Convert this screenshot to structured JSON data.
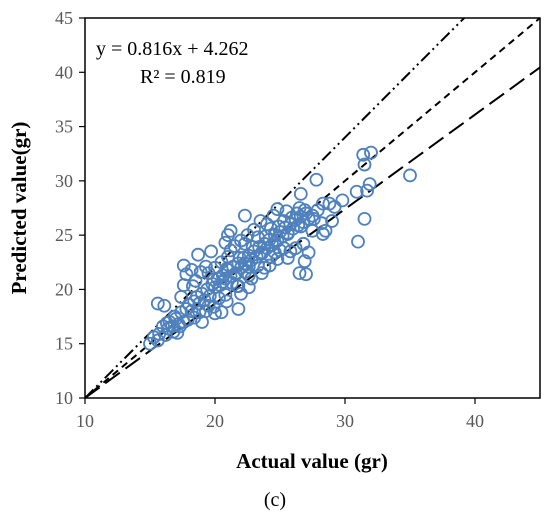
{
  "chart_data": {
    "type": "scatter",
    "title": "",
    "xlabel": "Actual value (gr)",
    "ylabel": "Predicted value(gr)",
    "xlim": [
      10,
      45
    ],
    "ylim": [
      10,
      45
    ],
    "xticks": [
      10,
      20,
      30,
      40
    ],
    "yticks": [
      10,
      15,
      20,
      25,
      30,
      35,
      40,
      45
    ],
    "grid": false,
    "marker": "open-circle",
    "marker_color": "#4F81BD",
    "annotations": {
      "equation": "y = 0.816x + 4.262",
      "r2": "R² = 0.819"
    },
    "caption": "(c)",
    "lines": [
      {
        "style": "dash-dot",
        "slope": 1.2,
        "intercept": -2.0
      },
      {
        "style": "short-dash",
        "slope": 1.0,
        "intercept": 0.0
      },
      {
        "style": "long-dash",
        "slope": 0.87,
        "intercept": 1.3
      }
    ],
    "points": [
      [
        15.0,
        15.0
      ],
      [
        15.3,
        15.6
      ],
      [
        15.7,
        15.9
      ],
      [
        16.0,
        16.6
      ],
      [
        16.3,
        16.9
      ],
      [
        16.5,
        17.0
      ],
      [
        16.7,
        16.6
      ],
      [
        16.9,
        17.5
      ],
      [
        17.0,
        17.3
      ],
      [
        17.2,
        16.8
      ],
      [
        17.4,
        17.9
      ],
      [
        17.6,
        17.0
      ],
      [
        17.8,
        18.2
      ],
      [
        18.0,
        18.6
      ],
      [
        18.2,
        18.0
      ],
      [
        18.4,
        18.9
      ],
      [
        18.6,
        19.3
      ],
      [
        18.8,
        18.7
      ],
      [
        19.0,
        19.6
      ],
      [
        19.2,
        19.0
      ],
      [
        19.4,
        20.0
      ],
      [
        19.6,
        19.4
      ],
      [
        19.8,
        20.5
      ],
      [
        20.0,
        20.2
      ],
      [
        20.2,
        21.0
      ],
      [
        20.4,
        20.4
      ],
      [
        20.6,
        21.3
      ],
      [
        20.8,
        21.0
      ],
      [
        21.0,
        21.8
      ],
      [
        21.2,
        21.2
      ],
      [
        21.4,
        22.1
      ],
      [
        21.6,
        21.5
      ],
      [
        21.8,
        22.4
      ],
      [
        22.0,
        22.0
      ],
      [
        22.2,
        22.9
      ],
      [
        22.4,
        22.3
      ],
      [
        22.6,
        23.1
      ],
      [
        22.8,
        22.7
      ],
      [
        23.0,
        23.5
      ],
      [
        23.2,
        23.0
      ],
      [
        23.4,
        23.9
      ],
      [
        23.6,
        23.3
      ],
      [
        23.8,
        24.2
      ],
      [
        24.0,
        23.8
      ],
      [
        24.2,
        24.6
      ],
      [
        24.4,
        24.1
      ],
      [
        24.6,
        25.0
      ],
      [
        24.8,
        24.5
      ],
      [
        25.0,
        25.3
      ],
      [
        25.2,
        24.9
      ],
      [
        25.4,
        25.7
      ],
      [
        25.6,
        25.2
      ],
      [
        25.8,
        26.0
      ],
      [
        26.0,
        25.6
      ],
      [
        26.2,
        26.4
      ],
      [
        26.4,
        25.9
      ],
      [
        26.6,
        26.7
      ],
      [
        26.8,
        26.2
      ],
      [
        27.0,
        27.0
      ],
      [
        27.2,
        26.5
      ],
      [
        21.0,
        23.0
      ],
      [
        22.0,
        24.5
      ],
      [
        23.0,
        25.5
      ],
      [
        24.0,
        26.0
      ],
      [
        20.5,
        22.5
      ],
      [
        21.5,
        24.0
      ],
      [
        22.5,
        25.0
      ],
      [
        23.5,
        26.3
      ],
      [
        24.5,
        26.8
      ],
      [
        25.5,
        27.2
      ],
      [
        26.5,
        27.5
      ],
      [
        19.5,
        21.5
      ],
      [
        18.5,
        20.8
      ],
      [
        20.0,
        22.0
      ],
      [
        21.2,
        23.6
      ],
      [
        22.3,
        24.2
      ],
      [
        23.3,
        24.8
      ],
      [
        24.3,
        25.6
      ],
      [
        25.3,
        26.3
      ],
      [
        26.3,
        27.0
      ],
      [
        20.8,
        19.5
      ],
      [
        21.8,
        20.3
      ],
      [
        22.8,
        21.0
      ],
      [
        23.8,
        22.0
      ],
      [
        24.8,
        22.8
      ],
      [
        25.8,
        23.5
      ],
      [
        26.8,
        24.2
      ],
      [
        21.3,
        20.6
      ],
      [
        22.3,
        21.6
      ],
      [
        23.3,
        22.2
      ],
      [
        24.3,
        23.0
      ],
      [
        25.3,
        23.8
      ],
      [
        19.5,
        18.5
      ],
      [
        20.3,
        19.2
      ],
      [
        18.8,
        17.9
      ],
      [
        17.9,
        17.2
      ],
      [
        16.8,
        16.1
      ],
      [
        20.6,
        20.7
      ],
      [
        21.6,
        21.4
      ],
      [
        22.6,
        22.1
      ],
      [
        23.6,
        23.4
      ],
      [
        24.6,
        24.3
      ],
      [
        25.6,
        25.1
      ],
      [
        26.6,
        25.8
      ],
      [
        27.6,
        26.5
      ],
      [
        19.9,
        20.9
      ],
      [
        20.9,
        21.9
      ],
      [
        21.9,
        22.9
      ],
      [
        22.9,
        23.9
      ],
      [
        23.9,
        24.9
      ],
      [
        24.9,
        25.8
      ],
      [
        25.9,
        26.6
      ],
      [
        26.9,
        27.3
      ],
      [
        27.5,
        26.8
      ],
      [
        27.9,
        27.3
      ],
      [
        28.2,
        26.1
      ],
      [
        28.5,
        25.4
      ],
      [
        28.8,
        27.9
      ],
      [
        29.2,
        27.6
      ],
      [
        29.8,
        28.2
      ],
      [
        15.6,
        18.7
      ],
      [
        16.1,
        18.5
      ],
      [
        17.4,
        19.3
      ],
      [
        17.6,
        20.4
      ],
      [
        17.6,
        22.2
      ],
      [
        18.2,
        21.8
      ],
      [
        18.7,
        23.2
      ],
      [
        18.3,
        20.3
      ],
      [
        17.8,
        21.4
      ],
      [
        18.9,
        21.6
      ],
      [
        19.3,
        22.1
      ],
      [
        22.3,
        26.8
      ],
      [
        21.2,
        25.4
      ],
      [
        20.8,
        24.3
      ],
      [
        19.7,
        23.5
      ],
      [
        21.0,
        25.0
      ],
      [
        24.8,
        27.4
      ],
      [
        26.6,
        28.8
      ],
      [
        27.8,
        30.1
      ],
      [
        28.3,
        27.9
      ],
      [
        31.4,
        32.4
      ],
      [
        32.0,
        32.6
      ],
      [
        31.9,
        29.7
      ],
      [
        31.7,
        29.1
      ],
      [
        30.9,
        29.0
      ],
      [
        31.5,
        31.5
      ],
      [
        35.0,
        30.5
      ],
      [
        31.5,
        26.5
      ],
      [
        31.0,
        24.4
      ],
      [
        27.0,
        21.4
      ],
      [
        26.5,
        21.5
      ],
      [
        22.3,
        22.4
      ],
      [
        21.7,
        20.3
      ],
      [
        22.0,
        19.6
      ],
      [
        22.6,
        20.2
      ],
      [
        21.8,
        18.2
      ],
      [
        20.5,
        17.9
      ],
      [
        20.0,
        17.8
      ],
      [
        19.3,
        18.0
      ],
      [
        25.6,
        22.9
      ],
      [
        26.2,
        23.8
      ],
      [
        26.9,
        22.6
      ],
      [
        27.2,
        23.4
      ],
      [
        28.3,
        25.1
      ],
      [
        27.5,
        25.4
      ],
      [
        29.0,
        26.3
      ],
      [
        24.2,
        22.2
      ],
      [
        23.6,
        21.5
      ],
      [
        25.0,
        23.6
      ],
      [
        22.6,
        21.3
      ],
      [
        20.9,
        18.9
      ],
      [
        19.9,
        18.4
      ],
      [
        18.4,
        17.4
      ],
      [
        17.3,
        16.6
      ],
      [
        16.4,
        16.4
      ],
      [
        15.6,
        15.3
      ],
      [
        16.2,
        15.8
      ],
      [
        17.1,
        16.0
      ],
      [
        19.0,
        17.0
      ],
      [
        24.6,
        23.4
      ]
    ]
  }
}
